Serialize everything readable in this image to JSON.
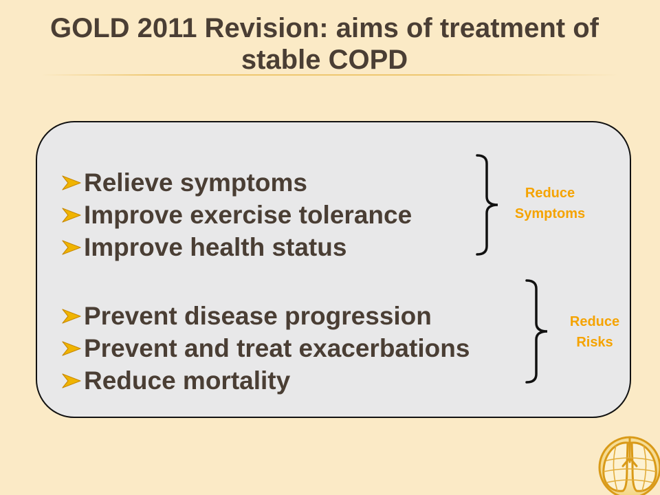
{
  "slide": {
    "title_line1": "GOLD 2011 Revision: aims of treatment of",
    "title_line2": "stable COPD"
  },
  "groups": [
    {
      "items": [
        "Relieve symptoms",
        "Improve exercise tolerance",
        "Improve health status"
      ],
      "label_line1": "Reduce",
      "label_line2": "Symptoms"
    },
    {
      "items": [
        "Prevent disease progression",
        "Prevent and treat exacerbations",
        "Reduce mortality"
      ],
      "label_line1": "Reduce",
      "label_line2": "Risks"
    }
  ],
  "icons": {
    "bullet": "arrow-bullet-icon",
    "brace": "right-curly-brace-icon",
    "logo": "gold-lungs-globe-logo"
  },
  "colors": {
    "background": "#fbeac6",
    "text": "#4a3e34",
    "accent": "#f5a300",
    "panel": "#e8e8e9",
    "bullet": "#f0b400"
  }
}
